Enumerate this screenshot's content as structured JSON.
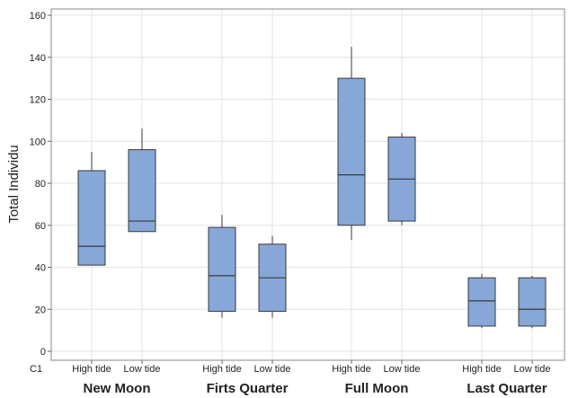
{
  "chart_data": {
    "type": "boxplot",
    "ylabel": "Total Individu",
    "xlabel_prefix": "C1",
    "ylim": [
      0,
      160
    ],
    "yticks": [
      0,
      20,
      40,
      60,
      80,
      100,
      120,
      140,
      160
    ],
    "grid": true,
    "box_color": "#86a7d8",
    "box_edge_color": "#3a3a3a",
    "groups": [
      {
        "label": "New Moon",
        "boxes": [
          {
            "label": "High tide",
            "min": 41,
            "q1": 41,
            "median": 50,
            "q3": 86,
            "max": 95
          },
          {
            "label": "Low tide",
            "min": 57,
            "q1": 57,
            "median": 62,
            "q3": 96,
            "max": 106
          }
        ]
      },
      {
        "label": "Firts Quarter",
        "boxes": [
          {
            "label": "High tide",
            "min": 16,
            "q1": 19,
            "median": 36,
            "q3": 59,
            "max": 65
          },
          {
            "label": "Low tide",
            "min": 16,
            "q1": 19,
            "median": 35,
            "q3": 51,
            "max": 55
          }
        ]
      },
      {
        "label": "Full Moon",
        "boxes": [
          {
            "label": "High tide",
            "min": 53,
            "q1": 60,
            "median": 84,
            "q3": 130,
            "max": 145
          },
          {
            "label": "Low tide",
            "min": 60,
            "q1": 62,
            "median": 82,
            "q3": 102,
            "max": 104
          }
        ]
      },
      {
        "label": "Last Quarter",
        "boxes": [
          {
            "label": "High tide",
            "min": 11,
            "q1": 12,
            "median": 24,
            "q3": 35,
            "max": 37
          },
          {
            "label": "Low tide",
            "min": 11,
            "q1": 12,
            "median": 20,
            "q3": 35,
            "max": 36
          }
        ]
      }
    ]
  }
}
